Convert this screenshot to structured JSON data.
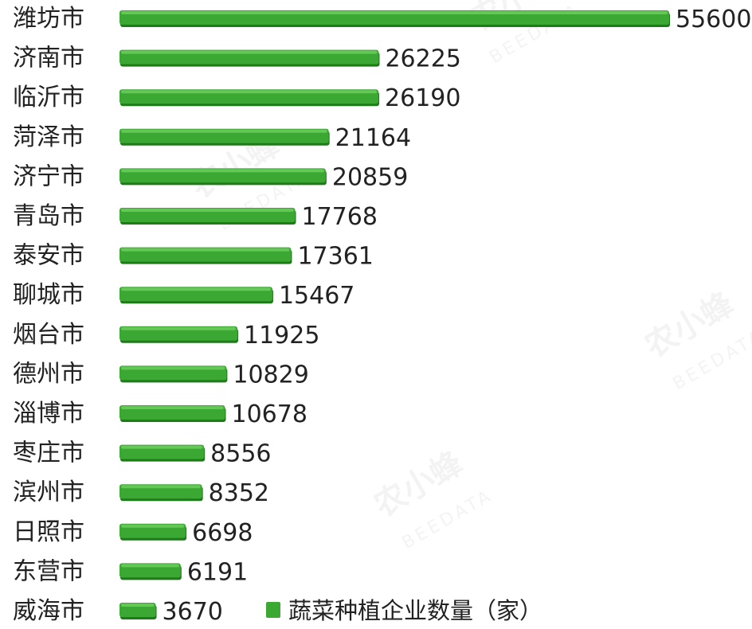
{
  "chart_data": {
    "type": "bar",
    "orientation": "horizontal",
    "categories": [
      "潍坊市",
      "济南市",
      "临沂市",
      "菏泽市",
      "济宁市",
      "青岛市",
      "泰安市",
      "聊城市",
      "烟台市",
      "德州市",
      "淄博市",
      "枣庄市",
      "滨州市",
      "日照市",
      "东营市",
      "威海市"
    ],
    "series": [
      {
        "name": "蔬菜种植企业数量（家）",
        "values": [
          55600,
          26225,
          26190,
          21164,
          20859,
          17768,
          17361,
          15467,
          11925,
          10829,
          10678,
          8556,
          8352,
          6698,
          6191,
          3670
        ]
      }
    ],
    "legend_position": "bottom-right",
    "grid": false,
    "xlim": [
      0,
      55600
    ]
  },
  "colors": {
    "bar": "#3aa832",
    "bar_top": "#6fd05f",
    "bar_shadow": "#1f7a1a",
    "legend": "#3aa832"
  },
  "watermark": {
    "brand": "农小蜂",
    "sub": "BEEDATA"
  }
}
